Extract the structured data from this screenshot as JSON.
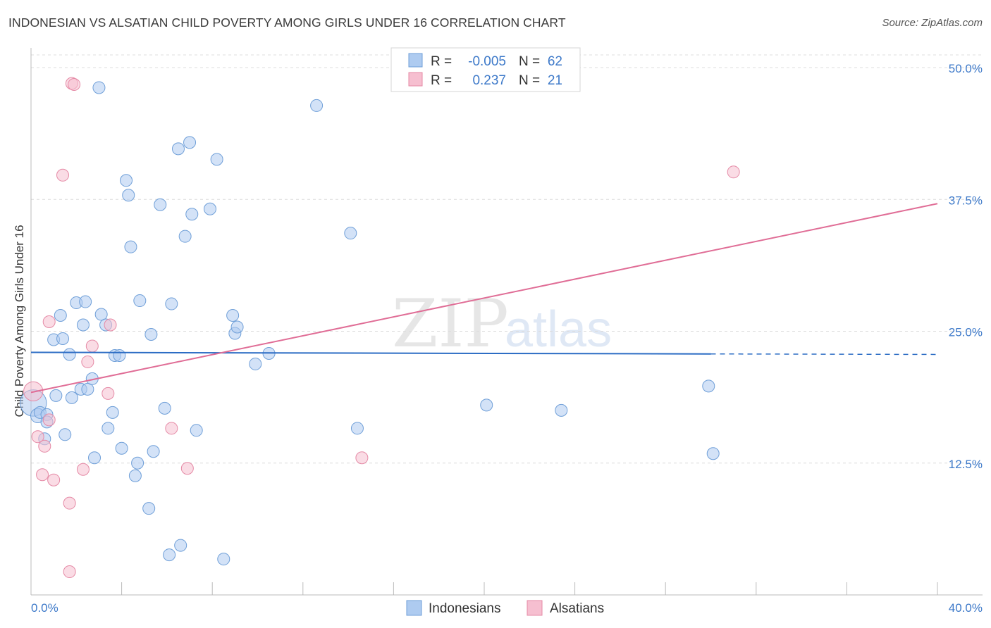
{
  "page": {
    "title": "INDONESIAN VS ALSATIAN CHILD POVERTY AMONG GIRLS UNDER 16 CORRELATION CHART",
    "source": "Source: ZipAtlas.com"
  },
  "watermark": {
    "zip": "ZIP",
    "atlas": "atlas"
  },
  "colors": {
    "indonesians_fill": "#aecbf0",
    "indonesians_stroke": "#6f9fd8",
    "indonesians_line": "#2b6cc4",
    "alsatians_fill": "#f6bfd0",
    "alsatians_stroke": "#e58aa6",
    "alsatians_line": "#e06d96",
    "axis_label": "#3d79c9",
    "grid": "#dcdcdc"
  },
  "legend": {
    "rows": [
      {
        "r_label": "R =",
        "r_value": "-0.005",
        "n_label": "N =",
        "n_value": "62"
      },
      {
        "r_label": "R =",
        "r_value": "0.237",
        "n_label": "N =",
        "n_value": "21"
      }
    ]
  },
  "chart_data": {
    "type": "scatter",
    "title": "INDONESIAN VS ALSATIAN CHILD POVERTY AMONG GIRLS UNDER 16 CORRELATION CHART",
    "xlabel": "",
    "ylabel": "Child Poverty Among Girls Under 16",
    "xlim": [
      0,
      40
    ],
    "ylim": [
      0,
      50
    ],
    "x_tick_labels": [
      "0.0%",
      "40.0%"
    ],
    "y_ticks": [
      12.5,
      25.0,
      37.5,
      50.0
    ],
    "y_tick_labels": [
      "12.5%",
      "25.0%",
      "37.5%",
      "50.0%"
    ],
    "series": [
      {
        "name": "Indonesians",
        "r": -0.005,
        "n": 62,
        "trend": {
          "x0": 0,
          "y0": 23.0,
          "x1": 30,
          "y1": 22.85,
          "dash_to_x": 40,
          "dash_y1": 22.8
        },
        "points": [
          [
            0.1,
            18.2,
            2.2
          ],
          [
            0.3,
            17.0,
            1.2
          ],
          [
            0.4,
            17.3,
            1
          ],
          [
            0.7,
            17.1,
            1
          ],
          [
            0.6,
            14.8,
            1
          ],
          [
            0.7,
            16.4,
            1
          ],
          [
            1.0,
            24.2,
            1
          ],
          [
            1.1,
            18.9,
            1
          ],
          [
            1.3,
            26.5,
            1
          ],
          [
            1.4,
            24.3,
            1
          ],
          [
            1.5,
            15.2,
            1
          ],
          [
            1.7,
            22.8,
            1
          ],
          [
            1.8,
            18.7,
            1
          ],
          [
            2.0,
            27.7,
            1
          ],
          [
            2.2,
            19.5,
            1
          ],
          [
            2.3,
            25.6,
            1
          ],
          [
            2.4,
            27.8,
            1
          ],
          [
            2.5,
            19.5,
            1
          ],
          [
            2.7,
            20.5,
            1
          ],
          [
            2.8,
            13.0,
            1
          ],
          [
            3.0,
            48.1,
            1
          ],
          [
            3.1,
            26.6,
            1
          ],
          [
            3.3,
            25.6,
            1
          ],
          [
            3.4,
            15.8,
            1
          ],
          [
            3.6,
            17.3,
            1
          ],
          [
            3.7,
            22.7,
            1
          ],
          [
            3.9,
            22.7,
            1
          ],
          [
            4.0,
            13.9,
            1
          ],
          [
            4.2,
            39.3,
            1
          ],
          [
            4.3,
            37.9,
            1
          ],
          [
            4.4,
            33.0,
            1
          ],
          [
            4.6,
            11.3,
            1
          ],
          [
            4.7,
            12.5,
            1
          ],
          [
            4.8,
            27.9,
            1
          ],
          [
            5.2,
            8.2,
            1
          ],
          [
            5.3,
            24.7,
            1
          ],
          [
            5.4,
            13.6,
            1
          ],
          [
            5.7,
            37.0,
            1
          ],
          [
            5.9,
            17.7,
            1
          ],
          [
            6.1,
            3.8,
            1
          ],
          [
            6.2,
            27.6,
            1
          ],
          [
            6.5,
            42.3,
            1
          ],
          [
            6.6,
            4.7,
            1
          ],
          [
            6.8,
            34.0,
            1
          ],
          [
            7.0,
            42.9,
            1
          ],
          [
            7.1,
            36.1,
            1
          ],
          [
            7.3,
            15.6,
            1
          ],
          [
            7.9,
            36.6,
            1
          ],
          [
            8.2,
            41.3,
            1
          ],
          [
            8.5,
            3.4,
            1
          ],
          [
            8.9,
            26.5,
            1
          ],
          [
            9.0,
            24.8,
            1
          ],
          [
            9.1,
            25.4,
            1
          ],
          [
            9.9,
            21.9,
            1
          ],
          [
            10.5,
            22.9,
            1
          ],
          [
            12.6,
            46.4,
            1
          ],
          [
            14.1,
            34.3,
            1
          ],
          [
            14.4,
            15.8,
            1
          ],
          [
            20.1,
            18.0,
            1
          ],
          [
            23.4,
            17.5,
            1
          ],
          [
            29.9,
            19.8,
            1
          ],
          [
            30.1,
            13.4,
            1
          ]
        ]
      },
      {
        "name": "Alsatians",
        "r": 0.237,
        "n": 21,
        "trend": {
          "x0": 0,
          "y0": 19.2,
          "x1": 40,
          "y1": 37.1
        },
        "points": [
          [
            0.1,
            19.3,
            1.6
          ],
          [
            0.3,
            15.0,
            1
          ],
          [
            0.5,
            11.4,
            1
          ],
          [
            0.6,
            14.1,
            1
          ],
          [
            0.8,
            16.6,
            1
          ],
          [
            0.8,
            25.9,
            1
          ],
          [
            1.0,
            10.9,
            1
          ],
          [
            1.4,
            39.8,
            1
          ],
          [
            1.7,
            2.2,
            1
          ],
          [
            1.7,
            8.7,
            1
          ],
          [
            1.8,
            48.5,
            1
          ],
          [
            1.9,
            48.4,
            1
          ],
          [
            2.3,
            11.9,
            1
          ],
          [
            2.5,
            22.1,
            1
          ],
          [
            2.7,
            23.6,
            1
          ],
          [
            3.4,
            19.1,
            1
          ],
          [
            3.5,
            25.6,
            1
          ],
          [
            6.2,
            15.8,
            1
          ],
          [
            6.9,
            12.0,
            1
          ],
          [
            14.6,
            13.0,
            1
          ],
          [
            31.0,
            40.1,
            1
          ]
        ]
      }
    ]
  }
}
